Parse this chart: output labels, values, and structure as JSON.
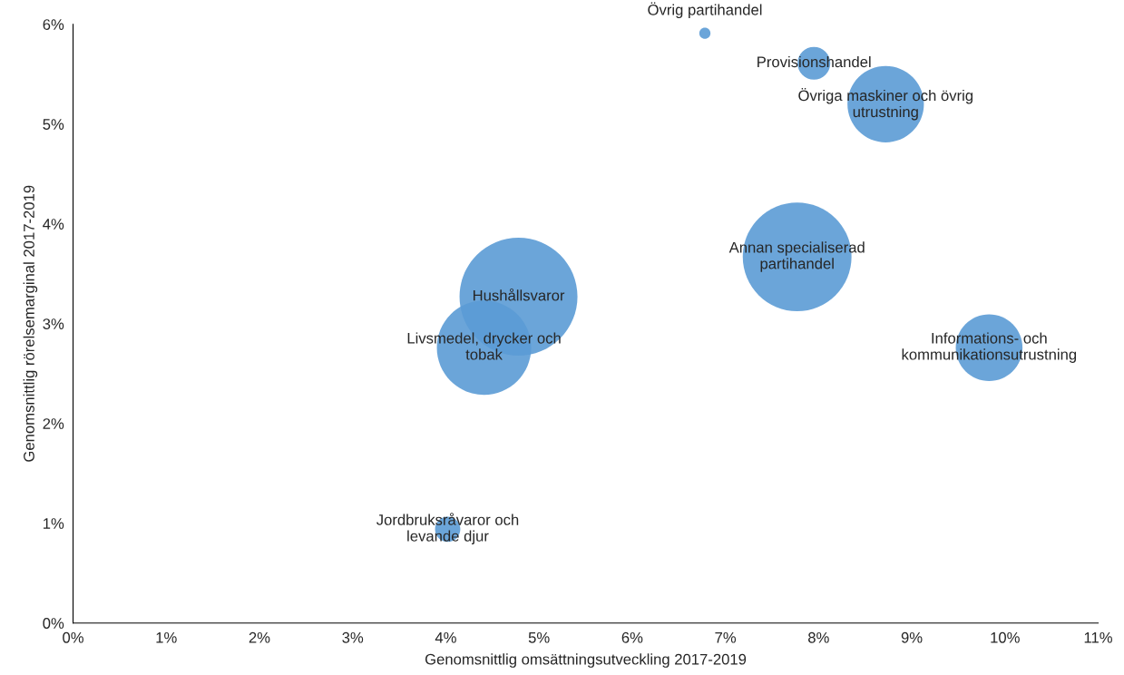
{
  "chart_data": {
    "type": "bubble",
    "xlabel": "Genomsnittlig omsättningsutveckling 2017-2019",
    "ylabel": "Genomsnittlig rörelsemarginal 2017-2019",
    "xlim": [
      0,
      11
    ],
    "ylim": [
      0,
      6
    ],
    "xticks": [
      {
        "value": 0,
        "label": "0%"
      },
      {
        "value": 1,
        "label": "1%"
      },
      {
        "value": 2,
        "label": "2%"
      },
      {
        "value": 3,
        "label": "3%"
      },
      {
        "value": 4,
        "label": "4%"
      },
      {
        "value": 5,
        "label": "5%"
      },
      {
        "value": 6,
        "label": "6%"
      },
      {
        "value": 7,
        "label": "7%"
      },
      {
        "value": 8,
        "label": "8%"
      },
      {
        "value": 9,
        "label": "9%"
      },
      {
        "value": 10,
        "label": "10%"
      },
      {
        "value": 11,
        "label": "11%"
      }
    ],
    "yticks": [
      {
        "value": 0,
        "label": "0%"
      },
      {
        "value": 1,
        "label": "1%"
      },
      {
        "value": 2,
        "label": "2%"
      },
      {
        "value": 3,
        "label": "3%"
      },
      {
        "value": 4,
        "label": "4%"
      },
      {
        "value": 5,
        "label": "5%"
      },
      {
        "value": 6,
        "label": "6%"
      }
    ],
    "grid": false,
    "legend": false,
    "series": [
      {
        "name": "Övrig partihandel",
        "color": "#5b9bd5",
        "x": [
          6.78
        ],
        "values": [
          5.91
        ],
        "sizes": [
          0.009
        ]
      },
      {
        "name": "Provisionshandel",
        "color": "#5b9bd5",
        "x": [
          7.95
        ],
        "values": [
          5.61
        ],
        "sizes": [
          0.077
        ]
      },
      {
        "name": "Övriga maskiner och övrig\nutrustning",
        "color": "#5b9bd5",
        "x": [
          8.72
        ],
        "values": [
          5.2
        ],
        "sizes": [
          0.42
        ]
      },
      {
        "name": "Annan specialiserad\npartihandel",
        "color": "#5b9bd5",
        "x": [
          7.77
        ],
        "values": [
          3.67
        ],
        "sizes": [
          0.85
        ]
      },
      {
        "name": "Hushållsvaror",
        "color": "#5b9bd5",
        "x": [
          4.78
        ],
        "values": [
          3.27
        ],
        "sizes": [
          1
        ]
      },
      {
        "name": "Livsmedel, drycker och\ntobak",
        "color": "#5b9bd5",
        "x": [
          4.41
        ],
        "values": [
          2.76
        ],
        "sizes": [
          0.64
        ]
      },
      {
        "name": "Informations- och\nkommunikationsutrustning",
        "color": "#5b9bd5",
        "x": [
          9.83
        ],
        "values": [
          2.76
        ],
        "sizes": [
          0.32
        ]
      },
      {
        "name": "Jordbruksråvaror och\nlevande djur",
        "color": "#5b9bd5",
        "x": [
          4.02
        ],
        "values": [
          0.94
        ],
        "sizes": [
          0.046
        ]
      }
    ]
  }
}
